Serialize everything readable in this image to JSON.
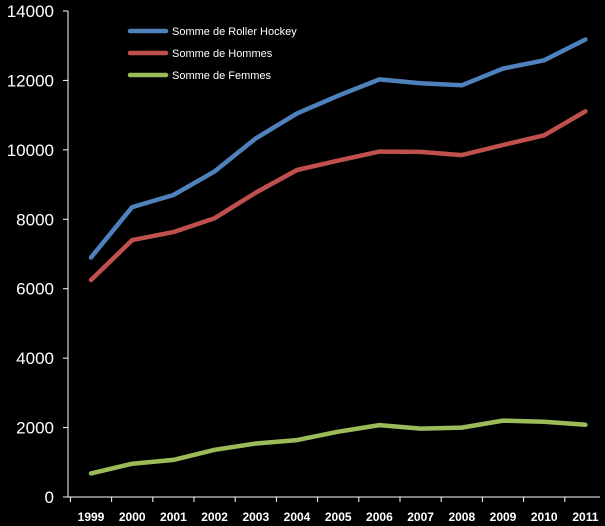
{
  "chart_data": {
    "type": "line",
    "title": "",
    "xlabel": "",
    "ylabel": "",
    "categories": [
      "1999",
      "2000",
      "2001",
      "2002",
      "2003",
      "2004",
      "2005",
      "2006",
      "2007",
      "2008",
      "2009",
      "2010",
      "2011"
    ],
    "ylim": [
      0,
      14000
    ],
    "yticks": [
      "0",
      "2000",
      "4000",
      "6000",
      "8000",
      "10000",
      "12000",
      "14000"
    ],
    "grid": false,
    "legend_position": "top-left",
    "series": [
      {
        "name": "Somme de Roller Hockey",
        "color": "#4f81bd",
        "values": [
          6900,
          8350,
          8700,
          9380,
          10330,
          11050,
          11560,
          12030,
          11920,
          11860,
          12340,
          12580,
          13180
        ]
      },
      {
        "name": "Somme de Hommes",
        "color": "#c0504d",
        "values": [
          6250,
          7400,
          7630,
          8030,
          8770,
          9420,
          9690,
          9950,
          9940,
          9850,
          10140,
          10420,
          11110
        ]
      },
      {
        "name": "Somme de Femmes",
        "color": "#9bbb59",
        "values": [
          680,
          960,
          1070,
          1360,
          1540,
          1640,
          1880,
          2070,
          1970,
          2000,
          2200,
          2170,
          2080
        ]
      }
    ]
  }
}
